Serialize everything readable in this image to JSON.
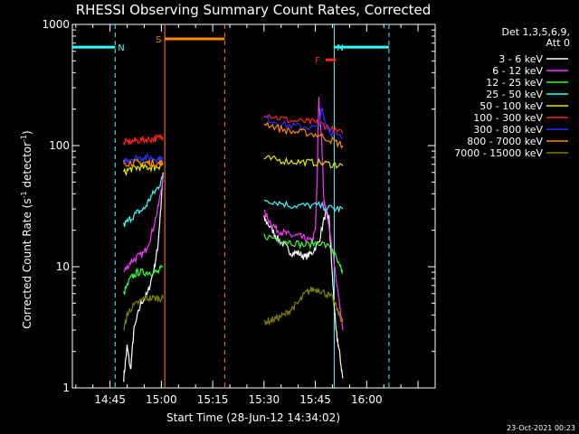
{
  "chart_data": {
    "type": "line",
    "title": "RHESSI Observing Summary Count Rates, Corrected",
    "xlabel": "Start Time (28-Jun-12 14:34:02)",
    "ylabel_main": "Corrected Count Rate (s",
    "ylabel_sup1": "-1",
    "ylabel_mid": " detector",
    "ylabel_sup2": "-1",
    "ylabel_end": ")",
    "yscale": "log",
    "ylim": [
      1,
      1000
    ],
    "xlim_min": [
      0,
      106
    ],
    "x_ticks": [
      {
        "label": "14:45",
        "min": 11
      },
      {
        "label": "15:00",
        "min": 26
      },
      {
        "label": "15:15",
        "min": 41
      },
      {
        "label": "15:30",
        "min": 56
      },
      {
        "label": "15:45",
        "min": 71
      },
      {
        "label": "16:00",
        "min": 86
      }
    ],
    "y_ticks": [
      {
        "label": "1",
        "value": 1
      },
      {
        "label": "10",
        "value": 10
      },
      {
        "label": "100",
        "value": 100
      },
      {
        "label": "1000",
        "value": 1000
      }
    ],
    "legend_header": [
      "Det 1,3,5,6,9,",
      "Att 0"
    ],
    "series": [
      {
        "name": "3 - 6 keV",
        "color": "#ffffff",
        "segments": [
          [
            [
              15,
              1.2
            ],
            [
              16,
              2.2
            ],
            [
              17,
              1.4
            ],
            [
              18,
              3
            ],
            [
              20,
              5
            ],
            [
              22,
              6
            ],
            [
              24,
              10
            ],
            [
              25,
              15
            ],
            [
              26,
              35
            ],
            [
              26.5,
              60
            ]
          ],
          [
            [
              56,
              25
            ],
            [
              58,
              21
            ],
            [
              60,
              17
            ],
            [
              62,
              15
            ],
            [
              64,
              13
            ],
            [
              66,
              13
            ],
            [
              68,
              12
            ],
            [
              70,
              13
            ],
            [
              72,
              16
            ],
            [
              74,
              28
            ],
            [
              75,
              25
            ],
            [
              76,
              8
            ],
            [
              77,
              3
            ],
            [
              78,
              2
            ],
            [
              79,
              1.2
            ]
          ]
        ]
      },
      {
        "name": "6 - 12 keV",
        "color": "#ff33ff",
        "segments": [
          [
            [
              15,
              9
            ],
            [
              17,
              11
            ],
            [
              19,
              12
            ],
            [
              21,
              13
            ],
            [
              23,
              18
            ],
            [
              25,
              30
            ],
            [
              26.5,
              55
            ]
          ],
          [
            [
              56,
              28
            ],
            [
              58,
              23
            ],
            [
              60,
              20
            ],
            [
              62,
              19
            ],
            [
              64,
              18
            ],
            [
              66,
              18
            ],
            [
              68,
              17
            ],
            [
              70,
              16
            ],
            [
              71,
              20
            ],
            [
              71.5,
              50
            ],
            [
              72,
              240
            ],
            [
              72.8,
              120
            ],
            [
              73.5,
              35
            ],
            [
              74,
              30
            ],
            [
              76,
              14
            ],
            [
              78,
              5
            ],
            [
              79,
              3
            ]
          ]
        ]
      },
      {
        "name": "12 - 25 keV",
        "color": "#33ff33",
        "segments": [
          [
            [
              15,
              6
            ],
            [
              17,
              8
            ],
            [
              19,
              9
            ],
            [
              21,
              9
            ],
            [
              23,
              9
            ],
            [
              25,
              9
            ],
            [
              26.5,
              10
            ]
          ],
          [
            [
              56,
              18
            ],
            [
              60,
              17
            ],
            [
              64,
              16
            ],
            [
              68,
              15
            ],
            [
              72,
              16
            ],
            [
              76,
              14
            ],
            [
              78,
              10
            ],
            [
              79,
              9
            ]
          ]
        ]
      },
      {
        "name": "25 - 50 keV",
        "color": "#33ffff",
        "segments": [
          [
            [
              15,
              22
            ],
            [
              17,
              25
            ],
            [
              19,
              28
            ],
            [
              21,
              30
            ],
            [
              23,
              38
            ],
            [
              25,
              45
            ],
            [
              26.5,
              55
            ]
          ],
          [
            [
              56,
              36
            ],
            [
              60,
              34
            ],
            [
              64,
              32
            ],
            [
              68,
              32
            ],
            [
              72,
              32
            ],
            [
              76,
              30
            ],
            [
              79,
              30
            ]
          ]
        ]
      },
      {
        "name": "50 - 100 keV",
        "color": "#e6e600",
        "segments": [
          [
            [
              15,
              60
            ],
            [
              17,
              64
            ],
            [
              19,
              66
            ],
            [
              21,
              66
            ],
            [
              23,
              66
            ],
            [
              25,
              67
            ],
            [
              26.5,
              70
            ]
          ],
          [
            [
              56,
              78
            ],
            [
              60,
              76
            ],
            [
              64,
              74
            ],
            [
              68,
              73
            ],
            [
              72,
              72
            ],
            [
              76,
              70
            ],
            [
              79,
              68
            ]
          ]
        ]
      },
      {
        "name": "100 - 300 keV",
        "color": "#ff2020",
        "segments": [
          [
            [
              15,
              105
            ],
            [
              17,
              108
            ],
            [
              19,
              110
            ],
            [
              21,
              112
            ],
            [
              23,
              113
            ],
            [
              25,
              115
            ],
            [
              26.5,
              118
            ]
          ],
          [
            [
              56,
              185
            ],
            [
              60,
              170
            ],
            [
              64,
              160
            ],
            [
              68,
              158
            ],
            [
              71,
              155
            ],
            [
              73,
              150
            ],
            [
              76,
              135
            ],
            [
              79,
              125
            ]
          ]
        ]
      },
      {
        "name": "300 - 800 keV",
        "color": "#2233ff",
        "segments": [
          [
            [
              15,
              75
            ],
            [
              17,
              78
            ],
            [
              19,
              79
            ],
            [
              21,
              80
            ],
            [
              23,
              79
            ],
            [
              25,
              78
            ],
            [
              26.5,
              78
            ]
          ],
          [
            [
              56,
              170
            ],
            [
              60,
              155
            ],
            [
              64,
              145
            ],
            [
              68,
              143
            ],
            [
              72,
              140
            ],
            [
              73,
              200
            ],
            [
              74,
              150
            ],
            [
              76,
              125
            ],
            [
              79,
              115
            ]
          ]
        ]
      },
      {
        "name": "800 - 7000 keV",
        "color": "#ff8800",
        "segments": [
          [
            [
              15,
              72
            ],
            [
              17,
              72
            ],
            [
              19,
              72
            ],
            [
              21,
              72
            ],
            [
              23,
              72
            ],
            [
              25,
              71
            ],
            [
              26.5,
              72
            ]
          ],
          [
            [
              56,
              155
            ],
            [
              60,
              140
            ],
            [
              64,
              130
            ],
            [
              68,
              128
            ],
            [
              72,
              122
            ],
            [
              76,
              110
            ],
            [
              79,
              100
            ]
          ]
        ]
      },
      {
        "name": "7000 - 15000 keV",
        "color": "#808000",
        "segments": [
          [
            [
              15,
              3
            ],
            [
              16,
              4
            ],
            [
              17,
              4.5
            ],
            [
              19,
              5
            ],
            [
              21,
              5.5
            ],
            [
              23,
              5.5
            ],
            [
              25,
              5.5
            ],
            [
              26.5,
              5.5
            ]
          ],
          [
            [
              56,
              3.5
            ],
            [
              58,
              3.6
            ],
            [
              60,
              3.8
            ],
            [
              62,
              4
            ],
            [
              64,
              4.5
            ],
            [
              66,
              5
            ],
            [
              68,
              6
            ],
            [
              70,
              6.5
            ],
            [
              72,
              6.5
            ],
            [
              74,
              6
            ],
            [
              76,
              5.5
            ],
            [
              78,
              4
            ],
            [
              79,
              3.5
            ]
          ]
        ]
      }
    ],
    "attenuator_bars": [
      {
        "label": "N",
        "color": "#33ffff",
        "x0": 0,
        "x1": 12.5,
        "y": 650,
        "markers": [
          {
            "x": 12.5,
            "style": "dashed"
          }
        ]
      },
      {
        "label": "N",
        "color": "#33ffff",
        "x0": 76.5,
        "x1": 92.5,
        "y": 650,
        "markers": [
          {
            "x": 76.5,
            "style": "solid"
          },
          {
            "x": 92.5,
            "style": "dashed"
          }
        ]
      },
      {
        "label": "S",
        "color": "#ff8800",
        "x0": 27,
        "x1": 44.5,
        "y": 760,
        "markers": [
          {
            "x": 27,
            "style": "solid"
          },
          {
            "x": 44.5,
            "style": "dashed"
          }
        ]
      },
      {
        "label": "F",
        "color": "#ff2020",
        "x0": 74,
        "x1": 77,
        "y": 510,
        "markers": []
      }
    ]
  },
  "footer": {
    "date_stamp": "23-Oct-2021 00:23"
  }
}
